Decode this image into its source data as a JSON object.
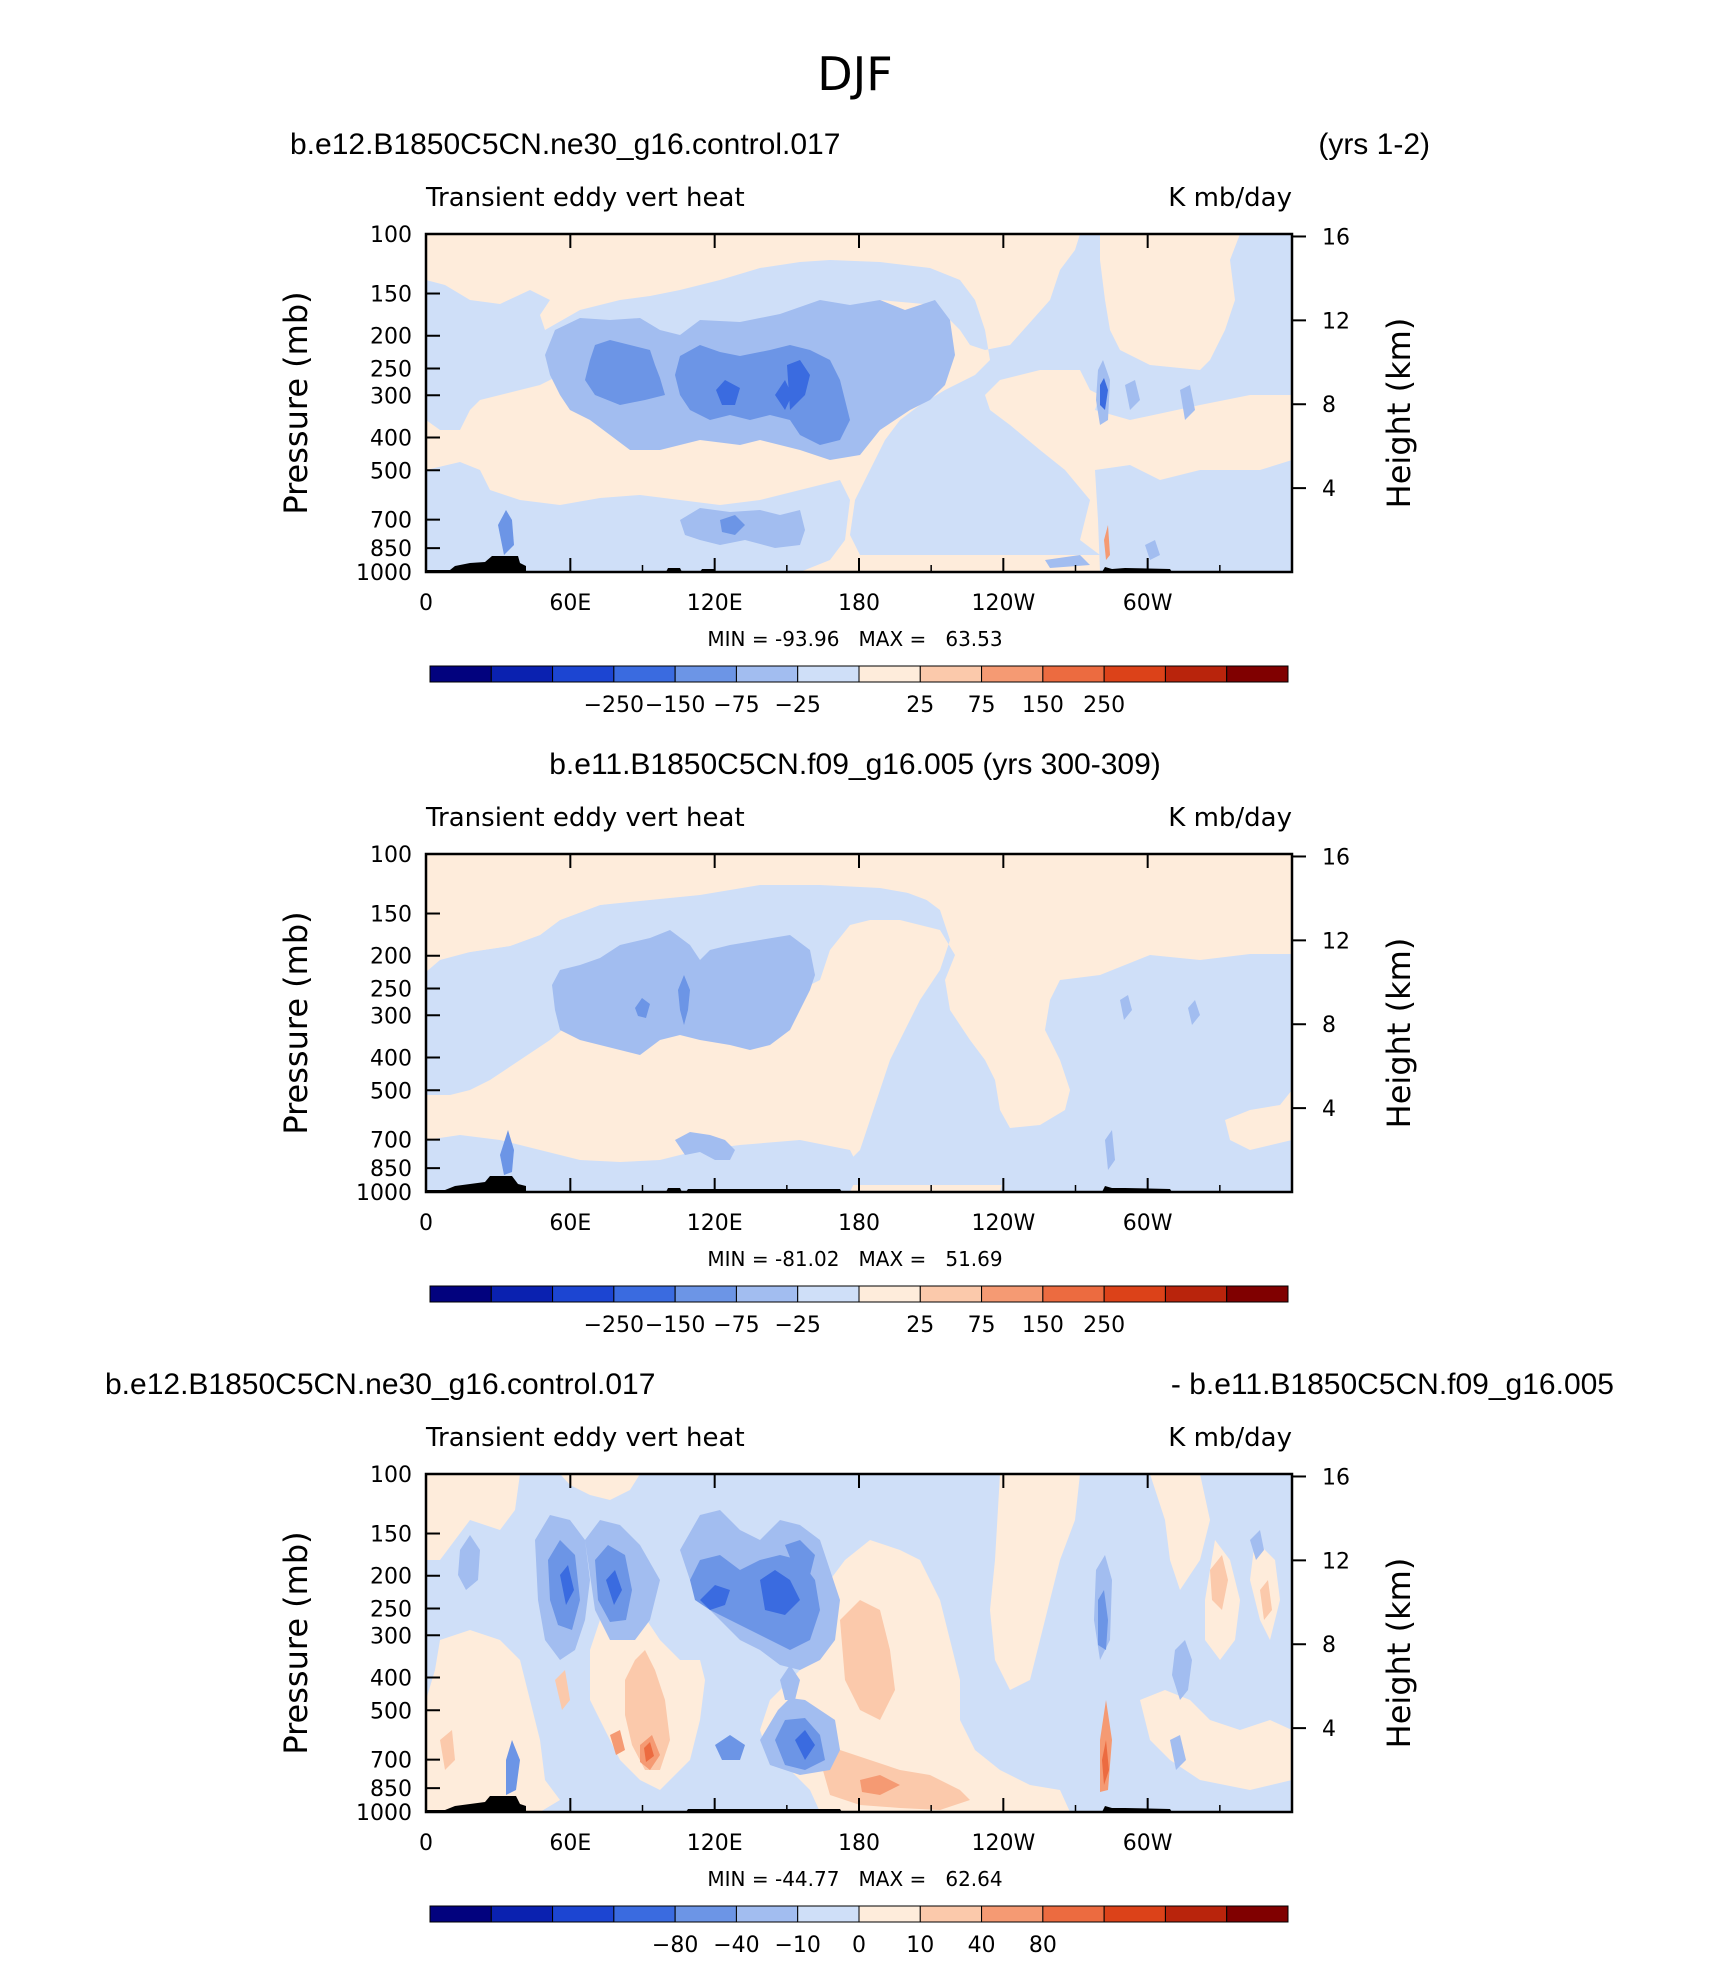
{
  "figure_title": "DJF",
  "colors": {
    "blues": [
      "#02027e",
      "#0a21b0",
      "#1c45d2",
      "#3a6be0",
      "#6c95e6",
      "#a2bdf0",
      "#cfdff8"
    ],
    "reds": [
      "#feecdb",
      "#fbc9ab",
      "#f59a73",
      "#ec6b40",
      "#dc4219",
      "#b9240c",
      "#800000"
    ],
    "land": "#000000"
  },
  "chart_data": [
    {
      "type": "heatmap",
      "header_left": "b.e12.B1850C5CN.ne30_g16.control.017",
      "header_right": "(yrs 1-2)",
      "subtitle_left": "Transient eddy vert heat",
      "subtitle_right": "K mb/day",
      "ylabel": "Pressure (mb)",
      "y2label": "Height (km)",
      "pressure_ticks": [
        "100",
        "150",
        "200",
        "250",
        "300",
        "400",
        "500",
        "700",
        "850",
        "1000"
      ],
      "height_ticks": [
        "16",
        "12",
        "8",
        "4"
      ],
      "lon_ticks": [
        "0",
        "60E",
        "120E",
        "180",
        "120W",
        "60W"
      ],
      "stats": "MIN = -93.96   MAX =   63.53",
      "colorbar_labels": [
        "-250",
        "-150",
        "-75",
        "-25",
        "25",
        "75",
        "150",
        "250"
      ],
      "min": -93.96,
      "max": 63.53
    },
    {
      "type": "heatmap",
      "header_center": "b.e11.B1850C5CN.f09_g16.005 (yrs 300-309)",
      "subtitle_left": "Transient eddy vert heat",
      "subtitle_right": "K mb/day",
      "ylabel": "Pressure (mb)",
      "y2label": "Height (km)",
      "pressure_ticks": [
        "100",
        "150",
        "200",
        "250",
        "300",
        "400",
        "500",
        "700",
        "850",
        "1000"
      ],
      "height_ticks": [
        "16",
        "12",
        "8",
        "4"
      ],
      "lon_ticks": [
        "0",
        "60E",
        "120E",
        "180",
        "120W",
        "60W"
      ],
      "stats": "MIN = -81.02   MAX =   51.69",
      "colorbar_labels": [
        "-250",
        "-150",
        "-75",
        "-25",
        "25",
        "75",
        "150",
        "250"
      ],
      "min": -81.02,
      "max": 51.69
    },
    {
      "type": "heatmap",
      "header_left": "b.e12.B1850C5CN.ne30_g16.control.017",
      "header_right": "- b.e11.B1850C5CN.f09_g16.005",
      "subtitle_left": "Transient eddy vert heat",
      "subtitle_right": "K mb/day",
      "ylabel": "Pressure (mb)",
      "y2label": "Height (km)",
      "pressure_ticks": [
        "100",
        "150",
        "200",
        "250",
        "300",
        "400",
        "500",
        "700",
        "850",
        "1000"
      ],
      "height_ticks": [
        "16",
        "12",
        "8",
        "4"
      ],
      "lon_ticks": [
        "0",
        "60E",
        "120E",
        "180",
        "120W",
        "60W"
      ],
      "stats": "MIN = -44.77   MAX =   62.64",
      "colorbar_labels": [
        "-80",
        "-40",
        "-10",
        "0",
        "10",
        "40",
        "80"
      ],
      "min": -44.77,
      "max": 62.64
    }
  ]
}
